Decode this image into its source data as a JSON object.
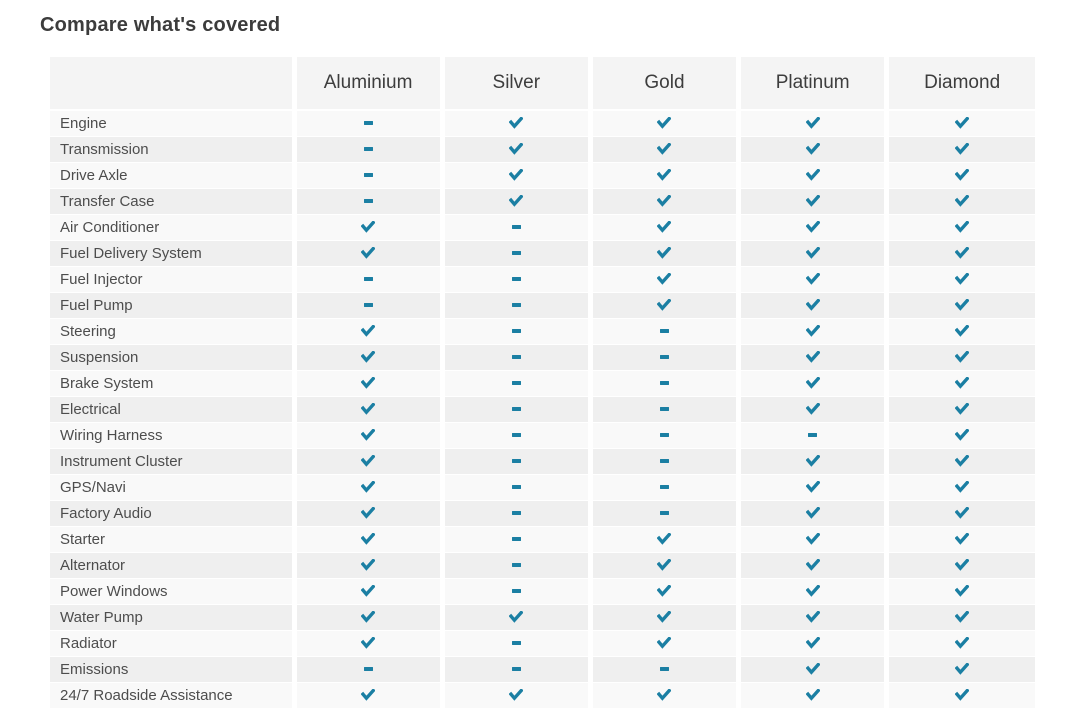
{
  "page": {
    "title": "Compare what's covered"
  },
  "accent_color": "#1b7fa3",
  "icons": {
    "covered": "check-icon",
    "not_covered": "dash-icon"
  },
  "table": {
    "feature_column_header": "",
    "plans": [
      "Aluminium",
      "Silver",
      "Gold",
      "Platinum",
      "Diamond"
    ],
    "rows": [
      {
        "feature": "Engine",
        "covered": [
          false,
          true,
          true,
          true,
          true
        ]
      },
      {
        "feature": "Transmission",
        "covered": [
          false,
          true,
          true,
          true,
          true
        ]
      },
      {
        "feature": "Drive Axle",
        "covered": [
          false,
          true,
          true,
          true,
          true
        ]
      },
      {
        "feature": "Transfer Case",
        "covered": [
          false,
          true,
          true,
          true,
          true
        ]
      },
      {
        "feature": "Air Conditioner",
        "covered": [
          true,
          false,
          true,
          true,
          true
        ]
      },
      {
        "feature": "Fuel Delivery System",
        "covered": [
          true,
          false,
          true,
          true,
          true
        ]
      },
      {
        "feature": "Fuel Injector",
        "covered": [
          false,
          false,
          true,
          true,
          true
        ]
      },
      {
        "feature": "Fuel Pump",
        "covered": [
          false,
          false,
          true,
          true,
          true
        ]
      },
      {
        "feature": "Steering",
        "covered": [
          true,
          false,
          false,
          true,
          true
        ]
      },
      {
        "feature": "Suspension",
        "covered": [
          true,
          false,
          false,
          true,
          true
        ]
      },
      {
        "feature": "Brake System",
        "covered": [
          true,
          false,
          false,
          true,
          true
        ]
      },
      {
        "feature": "Electrical",
        "covered": [
          true,
          false,
          false,
          true,
          true
        ]
      },
      {
        "feature": "Wiring Harness",
        "covered": [
          true,
          false,
          false,
          false,
          true
        ]
      },
      {
        "feature": "Instrument Cluster",
        "covered": [
          true,
          false,
          false,
          true,
          true
        ]
      },
      {
        "feature": "GPS/Navi",
        "covered": [
          true,
          false,
          false,
          true,
          true
        ]
      },
      {
        "feature": "Factory Audio",
        "covered": [
          true,
          false,
          false,
          true,
          true
        ]
      },
      {
        "feature": "Starter",
        "covered": [
          true,
          false,
          true,
          true,
          true
        ]
      },
      {
        "feature": "Alternator",
        "covered": [
          true,
          false,
          true,
          true,
          true
        ]
      },
      {
        "feature": "Power Windows",
        "covered": [
          true,
          false,
          true,
          true,
          true
        ]
      },
      {
        "feature": "Water Pump",
        "covered": [
          true,
          true,
          true,
          true,
          true
        ]
      },
      {
        "feature": "Radiator",
        "covered": [
          true,
          false,
          true,
          true,
          true
        ]
      },
      {
        "feature": "Emissions",
        "covered": [
          false,
          false,
          false,
          true,
          true
        ]
      },
      {
        "feature": "24/7 Roadside Assistance",
        "covered": [
          true,
          true,
          true,
          true,
          true
        ]
      }
    ]
  }
}
